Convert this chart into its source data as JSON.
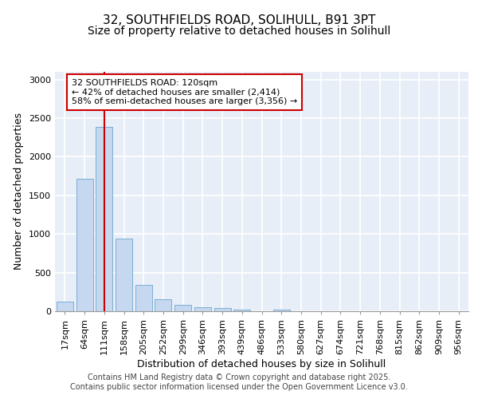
{
  "title_line1": "32, SOUTHFIELDS ROAD, SOLIHULL, B91 3PT",
  "title_line2": "Size of property relative to detached houses in Solihull",
  "xlabel": "Distribution of detached houses by size in Solihull",
  "ylabel": "Number of detached properties",
  "categories": [
    "17sqm",
    "64sqm",
    "111sqm",
    "158sqm",
    "205sqm",
    "252sqm",
    "299sqm",
    "346sqm",
    "393sqm",
    "439sqm",
    "486sqm",
    "533sqm",
    "580sqm",
    "627sqm",
    "674sqm",
    "721sqm",
    "768sqm",
    "815sqm",
    "862sqm",
    "909sqm",
    "956sqm"
  ],
  "values": [
    120,
    1720,
    2390,
    940,
    340,
    160,
    82,
    50,
    40,
    22,
    0,
    20,
    0,
    0,
    0,
    0,
    0,
    0,
    0,
    0,
    0
  ],
  "bar_color": "#c5d8ef",
  "bar_edge_color": "#7aaed4",
  "vline_color": "#cc0000",
  "annotation_text": "32 SOUTHFIELDS ROAD: 120sqm\n← 42% of detached houses are smaller (2,414)\n58% of semi-detached houses are larger (3,356) →",
  "annotation_box_color": "#ffffff",
  "annotation_box_edge_color": "#cc0000",
  "ylim": [
    0,
    3100
  ],
  "yticks": [
    0,
    500,
    1000,
    1500,
    2000,
    2500,
    3000
  ],
  "background_color": "#e8eef8",
  "grid_color": "#ffffff",
  "footer_text": "Contains HM Land Registry data © Crown copyright and database right 2025.\nContains public sector information licensed under the Open Government Licence v3.0.",
  "title_fontsize": 11,
  "subtitle_fontsize": 10,
  "tick_fontsize": 8,
  "ylabel_fontsize": 9,
  "xlabel_fontsize": 9,
  "footer_fontsize": 7,
  "vline_x": 2.0
}
